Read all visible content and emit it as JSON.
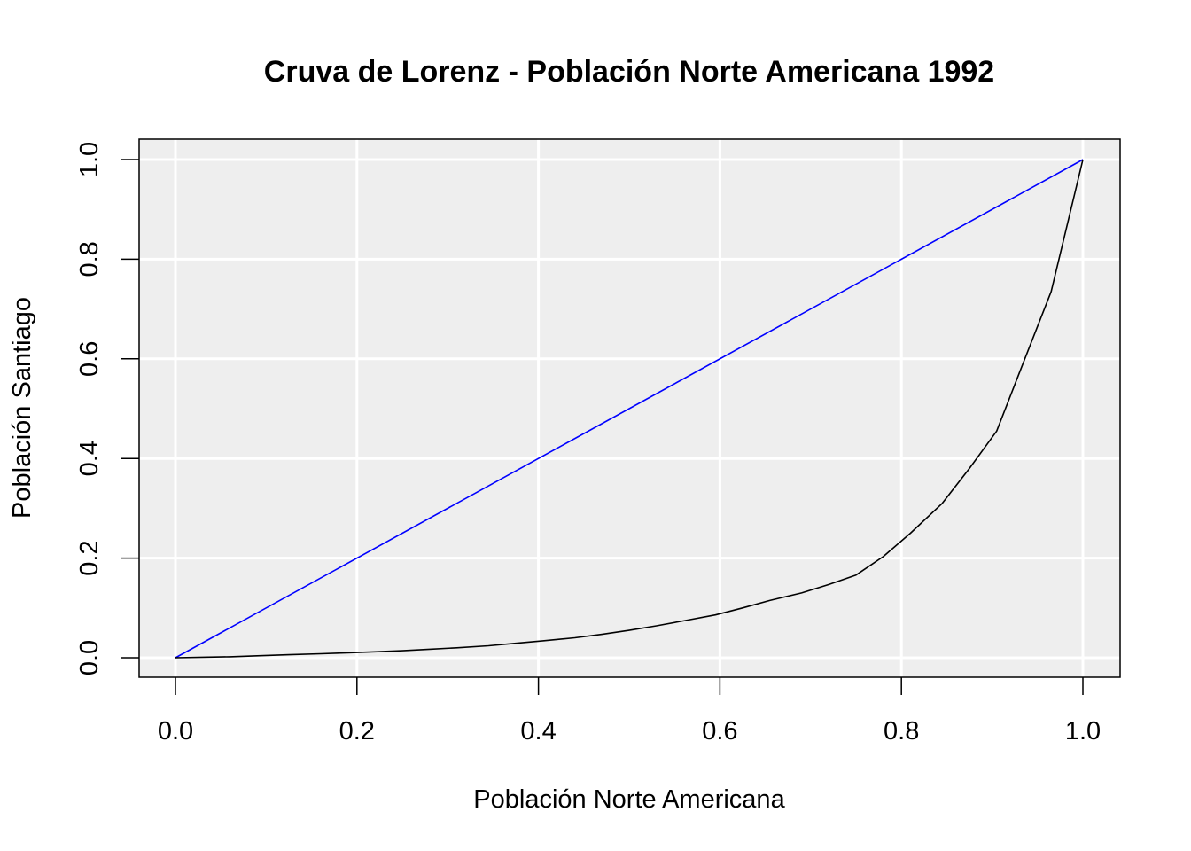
{
  "chart_data": {
    "type": "line",
    "title": "Cruva de Lorenz - Población Norte Americana 1992",
    "xlabel": "Población Norte Americana",
    "ylabel": "Población Santiago",
    "xlim": [
      0,
      1
    ],
    "ylim": [
      0,
      1
    ],
    "x_ticks": [
      "0.0",
      "0.2",
      "0.4",
      "0.6",
      "0.8",
      "1.0"
    ],
    "y_ticks": [
      "0.0",
      "0.2",
      "0.4",
      "0.6",
      "0.8",
      "1.0"
    ],
    "grid": true,
    "background_color": "#eeeeee",
    "grid_color": "#ffffff",
    "series": [
      {
        "color": "#0000ff",
        "x": [
          0,
          1
        ],
        "y": [
          0,
          1
        ]
      },
      {
        "color": "#000000",
        "x": [
          0,
          0.03,
          0.06,
          0.09,
          0.125,
          0.16,
          0.19,
          0.22,
          0.25,
          0.28,
          0.31,
          0.345,
          0.375,
          0.405,
          0.44,
          0.47,
          0.5,
          0.53,
          0.56,
          0.595,
          0.625,
          0.655,
          0.69,
          0.72,
          0.75,
          0.78,
          0.81,
          0.845,
          0.875,
          0.905,
          0.935,
          0.965,
          1.0
        ],
        "y": [
          0,
          0.001,
          0.002,
          0.004,
          0.006,
          0.008,
          0.01,
          0.012,
          0.014,
          0.017,
          0.02,
          0.024,
          0.029,
          0.034,
          0.04,
          0.047,
          0.055,
          0.064,
          0.074,
          0.086,
          0.1,
          0.115,
          0.13,
          0.147,
          0.166,
          0.203,
          0.25,
          0.31,
          0.38,
          0.455,
          0.595,
          0.735,
          1.0
        ]
      }
    ]
  }
}
